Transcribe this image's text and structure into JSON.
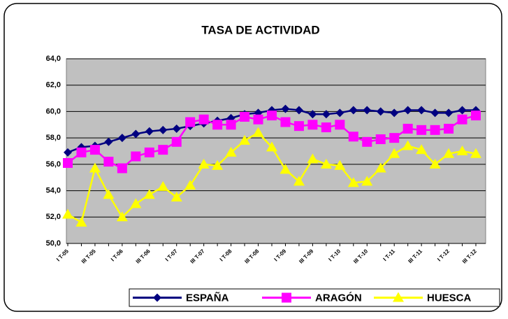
{
  "chart_data": {
    "type": "line",
    "title": "TASA DE ACTIVIDAD",
    "categories": [
      "I T-05",
      null,
      "III T-05",
      null,
      "I T-06",
      null,
      "III T-06",
      null,
      "I T-07",
      null,
      "III T-07",
      null,
      "I T-08",
      null,
      "III T-08",
      null,
      "I T-09",
      null,
      "III T-09",
      null,
      "I T-10",
      null,
      "III T-10",
      null,
      "I T-11",
      null,
      "III T-11",
      null,
      "I T-12",
      null,
      "III T-12"
    ],
    "series": [
      {
        "name": "ESPAÑA",
        "color": "#000080",
        "marker": "diamond",
        "values": [
          56.9,
          57.3,
          57.4,
          57.7,
          58.0,
          58.3,
          58.5,
          58.6,
          58.7,
          58.9,
          59.1,
          59.3,
          59.5,
          59.8,
          59.9,
          60.1,
          60.2,
          60.1,
          59.8,
          59.8,
          59.9,
          60.1,
          60.1,
          60.0,
          59.9,
          60.1,
          60.1,
          59.9,
          59.9,
          60.1,
          60.1
        ]
      },
      {
        "name": "ARAGÓN",
        "color": "#ff00ff",
        "marker": "square",
        "values": [
          56.1,
          56.9,
          57.1,
          56.2,
          55.7,
          56.6,
          56.9,
          57.1,
          57.7,
          59.2,
          59.4,
          59.0,
          59.0,
          59.6,
          59.4,
          59.7,
          59.2,
          58.9,
          59.0,
          58.8,
          59.0,
          58.1,
          57.7,
          57.9,
          58.0,
          58.7,
          58.6,
          58.6,
          58.7,
          59.4,
          59.7
        ]
      },
      {
        "name": "HUESCA",
        "color": "#ffff00",
        "marker": "triangle",
        "values": [
          52.2,
          51.6,
          55.7,
          53.7,
          52.0,
          53.0,
          53.7,
          54.3,
          53.5,
          54.4,
          56.0,
          55.9,
          56.9,
          57.8,
          58.4,
          57.3,
          55.6,
          54.7,
          56.4,
          56.0,
          55.9,
          54.6,
          54.7,
          55.7,
          56.8,
          57.4,
          57.1,
          56.0,
          56.8,
          57.0,
          56.8
        ]
      }
    ],
    "ylim": [
      50,
      64
    ],
    "yticks": [
      {
        "value": 50,
        "label": "50,0"
      },
      {
        "value": 52,
        "label": "52,0"
      },
      {
        "value": 54,
        "label": "54,0"
      },
      {
        "value": 56,
        "label": "56,0"
      },
      {
        "value": 58,
        "label": "58,0"
      },
      {
        "value": 60,
        "label": "60,0"
      },
      {
        "value": 62,
        "label": "62,0"
      },
      {
        "value": 64,
        "label": "64,0"
      }
    ],
    "grid": true,
    "legend": "bottom-right"
  }
}
